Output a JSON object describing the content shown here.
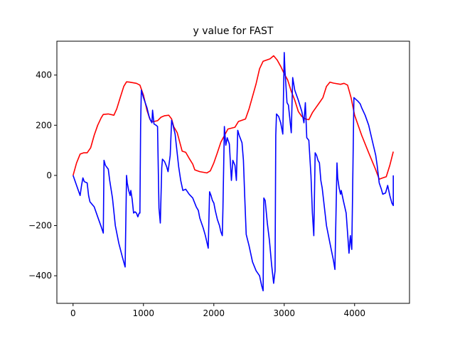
{
  "chart_data": {
    "type": "line",
    "title": "y value for FAST",
    "xlabel": "",
    "ylabel": "",
    "xlim": [
      -230,
      4780
    ],
    "ylim": [
      -510,
      535
    ],
    "x_ticks": [
      0,
      1000,
      2000,
      3000,
      4000
    ],
    "y_ticks": [
      -400,
      -200,
      0,
      200,
      400
    ],
    "grid": false,
    "series": [
      {
        "color": "#ff0000",
        "points": [
          [
            0,
            0
          ],
          [
            50,
            50
          ],
          [
            100,
            85
          ],
          [
            150,
            90
          ],
          [
            200,
            90
          ],
          [
            250,
            110
          ],
          [
            300,
            160
          ],
          [
            350,
            200
          ],
          [
            400,
            230
          ],
          [
            430,
            243
          ],
          [
            500,
            245
          ],
          [
            580,
            240
          ],
          [
            620,
            265
          ],
          [
            670,
            310
          ],
          [
            720,
            355
          ],
          [
            760,
            373
          ],
          [
            800,
            372
          ],
          [
            900,
            367
          ],
          [
            950,
            360
          ],
          [
            1000,
            320
          ],
          [
            1050,
            260
          ],
          [
            1090,
            225
          ],
          [
            1110,
            215
          ],
          [
            1150,
            215
          ],
          [
            1200,
            218
          ],
          [
            1250,
            232
          ],
          [
            1300,
            238
          ],
          [
            1360,
            240
          ],
          [
            1400,
            225
          ],
          [
            1430,
            195
          ],
          [
            1480,
            170
          ],
          [
            1550,
            97
          ],
          [
            1600,
            92
          ],
          [
            1650,
            68
          ],
          [
            1700,
            45
          ],
          [
            1730,
            22
          ],
          [
            1800,
            15
          ],
          [
            1900,
            10
          ],
          [
            1950,
            18
          ],
          [
            2000,
            50
          ],
          [
            2050,
            90
          ],
          [
            2100,
            133
          ],
          [
            2200,
            185
          ],
          [
            2300,
            192
          ],
          [
            2350,
            215
          ],
          [
            2400,
            220
          ],
          [
            2450,
            225
          ],
          [
            2500,
            265
          ],
          [
            2600,
            365
          ],
          [
            2650,
            425
          ],
          [
            2700,
            455
          ],
          [
            2800,
            465
          ],
          [
            2850,
            477
          ],
          [
            2900,
            460
          ],
          [
            2950,
            435
          ],
          [
            3000,
            405
          ],
          [
            3050,
            380
          ],
          [
            3100,
            335
          ],
          [
            3150,
            300
          ],
          [
            3200,
            255
          ],
          [
            3250,
            235
          ],
          [
            3300,
            225
          ],
          [
            3350,
            222
          ],
          [
            3400,
            250
          ],
          [
            3450,
            270
          ],
          [
            3500,
            290
          ],
          [
            3550,
            310
          ],
          [
            3600,
            355
          ],
          [
            3650,
            372
          ],
          [
            3700,
            368
          ],
          [
            3800,
            363
          ],
          [
            3850,
            367
          ],
          [
            3900,
            360
          ],
          [
            3950,
            310
          ],
          [
            4000,
            240
          ],
          [
            4100,
            160
          ],
          [
            4200,
            90
          ],
          [
            4300,
            22
          ],
          [
            4350,
            -15
          ],
          [
            4400,
            -10
          ],
          [
            4450,
            -5
          ],
          [
            4500,
            40
          ],
          [
            4550,
            95
          ]
        ]
      },
      {
        "color": "#0000ff",
        "points": [
          [
            0,
            0
          ],
          [
            50,
            -40
          ],
          [
            100,
            -80
          ],
          [
            120,
            -40
          ],
          [
            140,
            -10
          ],
          [
            160,
            -25
          ],
          [
            200,
            -30
          ],
          [
            220,
            -80
          ],
          [
            240,
            -105
          ],
          [
            300,
            -125
          ],
          [
            350,
            -165
          ],
          [
            400,
            -205
          ],
          [
            430,
            -230
          ],
          [
            440,
            60
          ],
          [
            460,
            40
          ],
          [
            500,
            25
          ],
          [
            520,
            -20
          ],
          [
            560,
            -90
          ],
          [
            600,
            -200
          ],
          [
            650,
            -270
          ],
          [
            700,
            -325
          ],
          [
            740,
            -365
          ],
          [
            760,
            0
          ],
          [
            770,
            -30
          ],
          [
            790,
            -60
          ],
          [
            810,
            -80
          ],
          [
            820,
            -60
          ],
          [
            840,
            -95
          ],
          [
            860,
            -150
          ],
          [
            880,
            -145
          ],
          [
            900,
            -150
          ],
          [
            920,
            -165
          ],
          [
            940,
            -150
          ],
          [
            950,
            -150
          ],
          [
            960,
            200
          ],
          [
            970,
            340
          ],
          [
            1000,
            310
          ],
          [
            1050,
            270
          ],
          [
            1080,
            235
          ],
          [
            1100,
            220
          ],
          [
            1120,
            210
          ],
          [
            1130,
            260
          ],
          [
            1150,
            205
          ],
          [
            1180,
            200
          ],
          [
            1200,
            195
          ],
          [
            1220,
            -130
          ],
          [
            1240,
            -190
          ],
          [
            1260,
            30
          ],
          [
            1270,
            65
          ],
          [
            1300,
            55
          ],
          [
            1330,
            35
          ],
          [
            1350,
            15
          ],
          [
            1380,
            80
          ],
          [
            1400,
            220
          ],
          [
            1420,
            200
          ],
          [
            1450,
            165
          ],
          [
            1500,
            35
          ],
          [
            1530,
            -20
          ],
          [
            1560,
            -60
          ],
          [
            1600,
            -55
          ],
          [
            1650,
            -75
          ],
          [
            1700,
            -90
          ],
          [
            1750,
            -125
          ],
          [
            1780,
            -140
          ],
          [
            1800,
            -170
          ],
          [
            1850,
            -210
          ],
          [
            1880,
            -240
          ],
          [
            1920,
            -290
          ],
          [
            1940,
            -65
          ],
          [
            1960,
            -80
          ],
          [
            1980,
            -100
          ],
          [
            2000,
            -110
          ],
          [
            2020,
            -140
          ],
          [
            2050,
            -175
          ],
          [
            2080,
            -200
          ],
          [
            2100,
            -225
          ],
          [
            2120,
            -240
          ],
          [
            2130,
            -130
          ],
          [
            2150,
            195
          ],
          [
            2170,
            120
          ],
          [
            2190,
            150
          ],
          [
            2220,
            125
          ],
          [
            2250,
            -20
          ],
          [
            2270,
            60
          ],
          [
            2300,
            40
          ],
          [
            2320,
            -20
          ],
          [
            2340,
            180
          ],
          [
            2360,
            160
          ],
          [
            2380,
            145
          ],
          [
            2400,
            130
          ],
          [
            2420,
            60
          ],
          [
            2440,
            -90
          ],
          [
            2460,
            -235
          ],
          [
            2500,
            -280
          ],
          [
            2550,
            -345
          ],
          [
            2600,
            -380
          ],
          [
            2650,
            -400
          ],
          [
            2680,
            -440
          ],
          [
            2700,
            -460
          ],
          [
            2710,
            -90
          ],
          [
            2730,
            -100
          ],
          [
            2760,
            -190
          ],
          [
            2790,
            -260
          ],
          [
            2820,
            -355
          ],
          [
            2850,
            -430
          ],
          [
            2870,
            -380
          ],
          [
            2880,
            160
          ],
          [
            2890,
            245
          ],
          [
            2920,
            235
          ],
          [
            2950,
            210
          ],
          [
            2980,
            165
          ],
          [
            3000,
            490
          ],
          [
            3010,
            420
          ],
          [
            3040,
            290
          ],
          [
            3060,
            280
          ],
          [
            3100,
            170
          ],
          [
            3120,
            390
          ],
          [
            3150,
            340
          ],
          [
            3200,
            300
          ],
          [
            3250,
            255
          ],
          [
            3280,
            210
          ],
          [
            3300,
            290
          ],
          [
            3320,
            150
          ],
          [
            3350,
            140
          ],
          [
            3380,
            0
          ],
          [
            3400,
            -150
          ],
          [
            3420,
            -240
          ],
          [
            3440,
            90
          ],
          [
            3460,
            80
          ],
          [
            3480,
            60
          ],
          [
            3500,
            50
          ],
          [
            3520,
            -20
          ],
          [
            3540,
            -50
          ],
          [
            3560,
            -100
          ],
          [
            3600,
            -200
          ],
          [
            3650,
            -270
          ],
          [
            3700,
            -340
          ],
          [
            3720,
            -375
          ],
          [
            3750,
            50
          ],
          [
            3760,
            -10
          ],
          [
            3780,
            -50
          ],
          [
            3800,
            -75
          ],
          [
            3810,
            -60
          ],
          [
            3840,
            -100
          ],
          [
            3880,
            -150
          ],
          [
            3900,
            -230
          ],
          [
            3920,
            -310
          ],
          [
            3940,
            -240
          ],
          [
            3960,
            -295
          ],
          [
            3970,
            -100
          ],
          [
            3990,
            310
          ],
          [
            4010,
            305
          ],
          [
            4050,
            295
          ],
          [
            4080,
            285
          ],
          [
            4100,
            270
          ],
          [
            4150,
            240
          ],
          [
            4200,
            200
          ],
          [
            4250,
            140
          ],
          [
            4300,
            80
          ],
          [
            4320,
            40
          ],
          [
            4350,
            -30
          ],
          [
            4380,
            -55
          ],
          [
            4400,
            -75
          ],
          [
            4440,
            -70
          ],
          [
            4470,
            -40
          ],
          [
            4500,
            -80
          ],
          [
            4530,
            -110
          ],
          [
            4550,
            -120
          ],
          [
            4550,
            0
          ]
        ]
      }
    ]
  }
}
